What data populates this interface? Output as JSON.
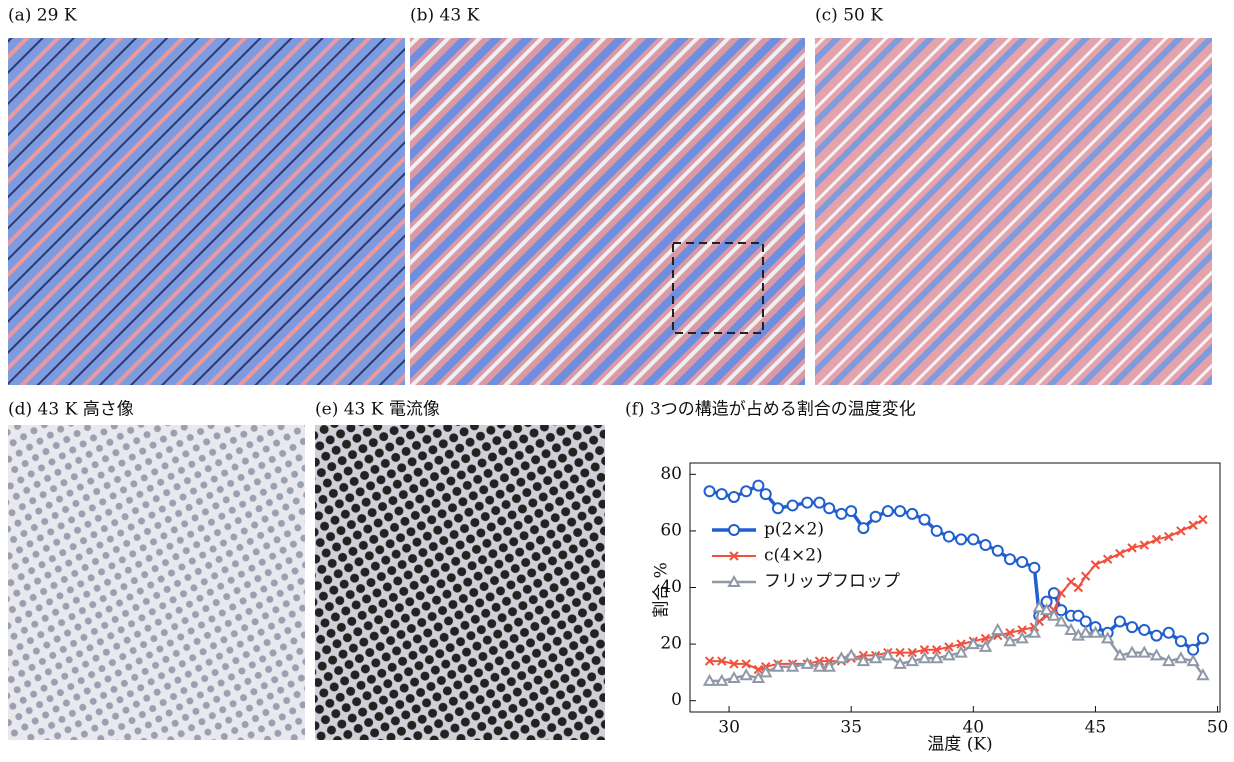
{
  "panels": [
    {
      "label": "(a) 29 K"
    },
    {
      "label": "(b) 43 K"
    },
    {
      "label": "(c) 50 K"
    },
    {
      "label": "(d) 43 K 高さ像"
    },
    {
      "label": "(e) 43 K 電流像"
    }
  ],
  "chart_data": {
    "type": "line",
    "title": "(f) 3つの構造が占める割合の温度変化",
    "xlabel": "温度 (K)",
    "ylabel": "割合 %",
    "x": [
      29.2,
      29.7,
      30.2,
      30.7,
      31.2,
      31.5,
      32.0,
      32.6,
      33.2,
      33.7,
      34.1,
      34.6,
      35.0,
      35.5,
      36.0,
      36.5,
      37.0,
      37.5,
      38.0,
      38.5,
      39.0,
      39.5,
      40.0,
      40.5,
      41.0,
      41.5,
      42.0,
      42.5,
      42.7,
      43.0,
      43.3,
      43.6,
      44.0,
      44.3,
      44.6,
      45.0,
      45.5,
      46.0,
      46.5,
      47.0,
      47.5,
      48.0,
      48.5,
      49.0,
      49.4
    ],
    "series": [
      {
        "name": "p(2×2)",
        "color": "#1f5fd0",
        "values": [
          74,
          73,
          72,
          74,
          76,
          73,
          68,
          69,
          70,
          70,
          68,
          66,
          67,
          61,
          65,
          67,
          67,
          66,
          64,
          60,
          58,
          57,
          57,
          55,
          53,
          50,
          49,
          47,
          30,
          35,
          38,
          32,
          30,
          30,
          28,
          26,
          24,
          28,
          26,
          25,
          23,
          24,
          21,
          18,
          22
        ]
      },
      {
        "name": "c(4×2)",
        "color": "#f0503c",
        "values": [
          14,
          14,
          13,
          13,
          11,
          12,
          13,
          13,
          13,
          14,
          14,
          14,
          15,
          16,
          16,
          17,
          17,
          17,
          18,
          18,
          19,
          20,
          21,
          22,
          23,
          24,
          25,
          26,
          28,
          30,
          32,
          38,
          42,
          40,
          44,
          48,
          50,
          52,
          54,
          55,
          57,
          58,
          60,
          62,
          64
        ]
      },
      {
        "name": "フリップフロップ",
        "color": "#9098a8",
        "values": [
          7,
          7,
          8,
          9,
          8,
          10,
          12,
          12,
          13,
          12,
          12,
          15,
          16,
          14,
          15,
          16,
          13,
          14,
          15,
          15,
          16,
          17,
          20,
          19,
          25,
          21,
          22,
          24,
          33,
          32,
          30,
          28,
          25,
          23,
          24,
          24,
          22,
          16,
          17,
          17,
          16,
          14,
          15,
          14,
          9
        ]
      }
    ],
    "xlim": [
      28.4,
      50.1
    ],
    "xticks": [
      30,
      35,
      40,
      45,
      50
    ],
    "ylim": [
      -4,
      84
    ],
    "yticks": [
      0,
      20,
      40,
      60,
      80
    ]
  }
}
